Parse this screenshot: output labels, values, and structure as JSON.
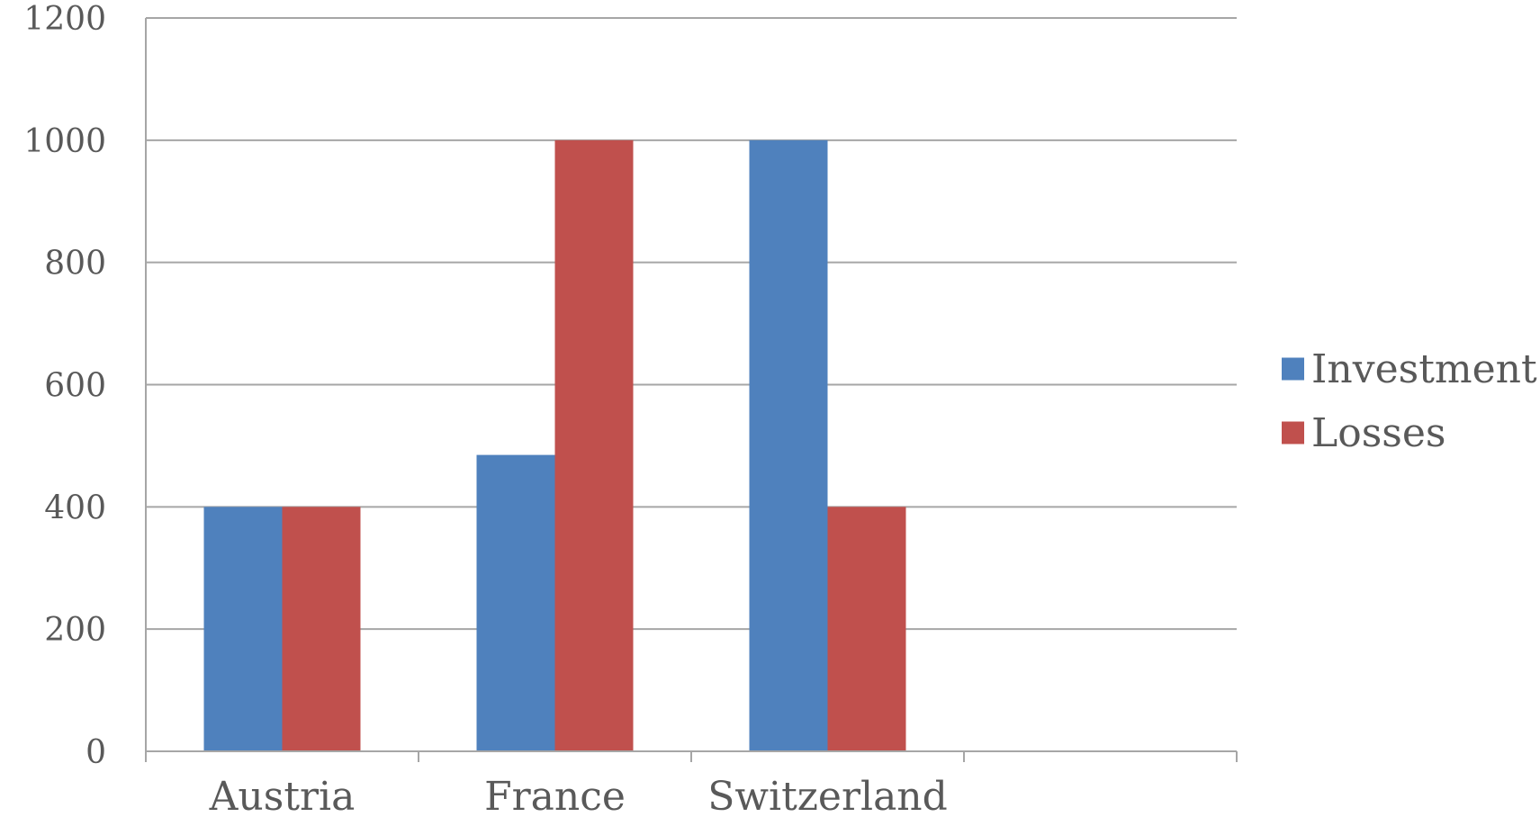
{
  "chart_data": {
    "type": "bar",
    "categories": [
      "Austria",
      "France",
      "Switzerland",
      ""
    ],
    "series": [
      {
        "name": "Investment",
        "values": [
          400,
          485,
          1000,
          null
        ],
        "color": "#4F81BD"
      },
      {
        "name": "Losses",
        "values": [
          400,
          1000,
          400,
          null
        ],
        "color": "#C0504D"
      }
    ],
    "ylim": [
      0,
      1200
    ],
    "yticks": [
      0,
      200,
      400,
      600,
      800,
      1000,
      1200
    ],
    "grid": true,
    "legend": "right"
  }
}
